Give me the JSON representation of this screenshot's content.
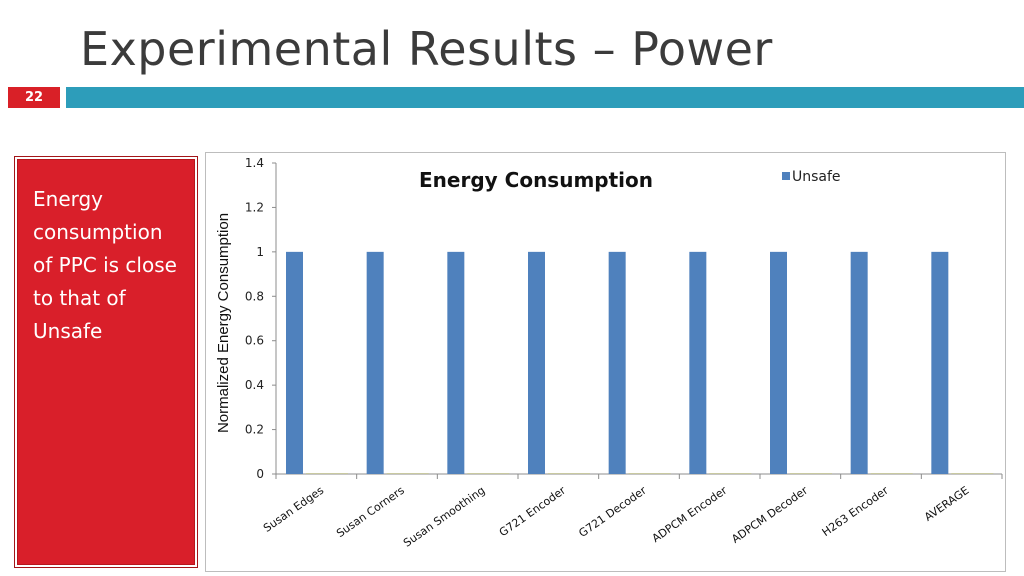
{
  "slide": {
    "title": "Experimental Results – Power",
    "number": "22",
    "accent_color": "#2d9dba",
    "red_color": "#d91f2a"
  },
  "sidebar_box": {
    "text": "Energy consumption of PPC is close to that of Unsafe"
  },
  "chart_data": {
    "type": "bar",
    "title": "Energy Consumption",
    "ylabel": "Normalized Energy Consumption",
    "xlabel": "",
    "ylim": [
      0,
      1.4
    ],
    "yticks": [
      "0",
      "0.2",
      "0.4",
      "0.6",
      "0.8",
      "1",
      "1.2",
      "1.4"
    ],
    "categories": [
      "Susan Edges",
      "Susan Corners",
      "Susan Smoothing",
      "G721 Encoder",
      "G721 Decoder",
      "ADPCM Encoder",
      "ADPCM Decoder",
      "H263 Encoder",
      "AVERAGE"
    ],
    "series": [
      {
        "name": "Unsafe",
        "color": "#4f81bd",
        "values": [
          1,
          1,
          1,
          1,
          1,
          1,
          1,
          1,
          1
        ]
      }
    ],
    "legend_position": "top-right",
    "grid": false
  }
}
